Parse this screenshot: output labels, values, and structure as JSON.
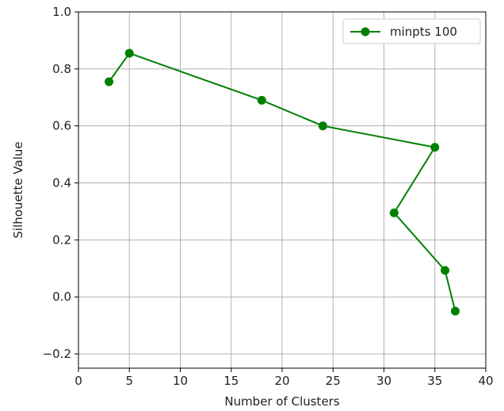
{
  "chart_data": {
    "type": "line",
    "title": "",
    "xlabel": "Number of Clusters",
    "ylabel": "Silhouette Value",
    "xlim": [
      0,
      40
    ],
    "ylim": [
      -0.25,
      1.0
    ],
    "xticks": [
      0,
      5,
      10,
      15,
      20,
      25,
      30,
      35,
      40
    ],
    "yticks": [
      -0.2,
      0.0,
      0.2,
      0.4,
      0.6,
      0.8,
      1.0
    ],
    "xtick_labels": [
      "0",
      "5",
      "10",
      "15",
      "20",
      "25",
      "30",
      "35",
      "40"
    ],
    "ytick_labels": [
      "−0.2",
      "0.0",
      "0.2",
      "0.4",
      "0.6",
      "0.8",
      "1.0"
    ],
    "grid": true,
    "legend_position": "top-right",
    "series": [
      {
        "name": "minpts 100",
        "color": "#008000",
        "marker": "circle",
        "x": [
          3,
          5,
          18,
          24,
          35,
          31,
          36,
          37
        ],
        "y": [
          0.755,
          0.855,
          0.69,
          0.6,
          0.525,
          0.295,
          0.093,
          -0.05
        ]
      }
    ]
  }
}
